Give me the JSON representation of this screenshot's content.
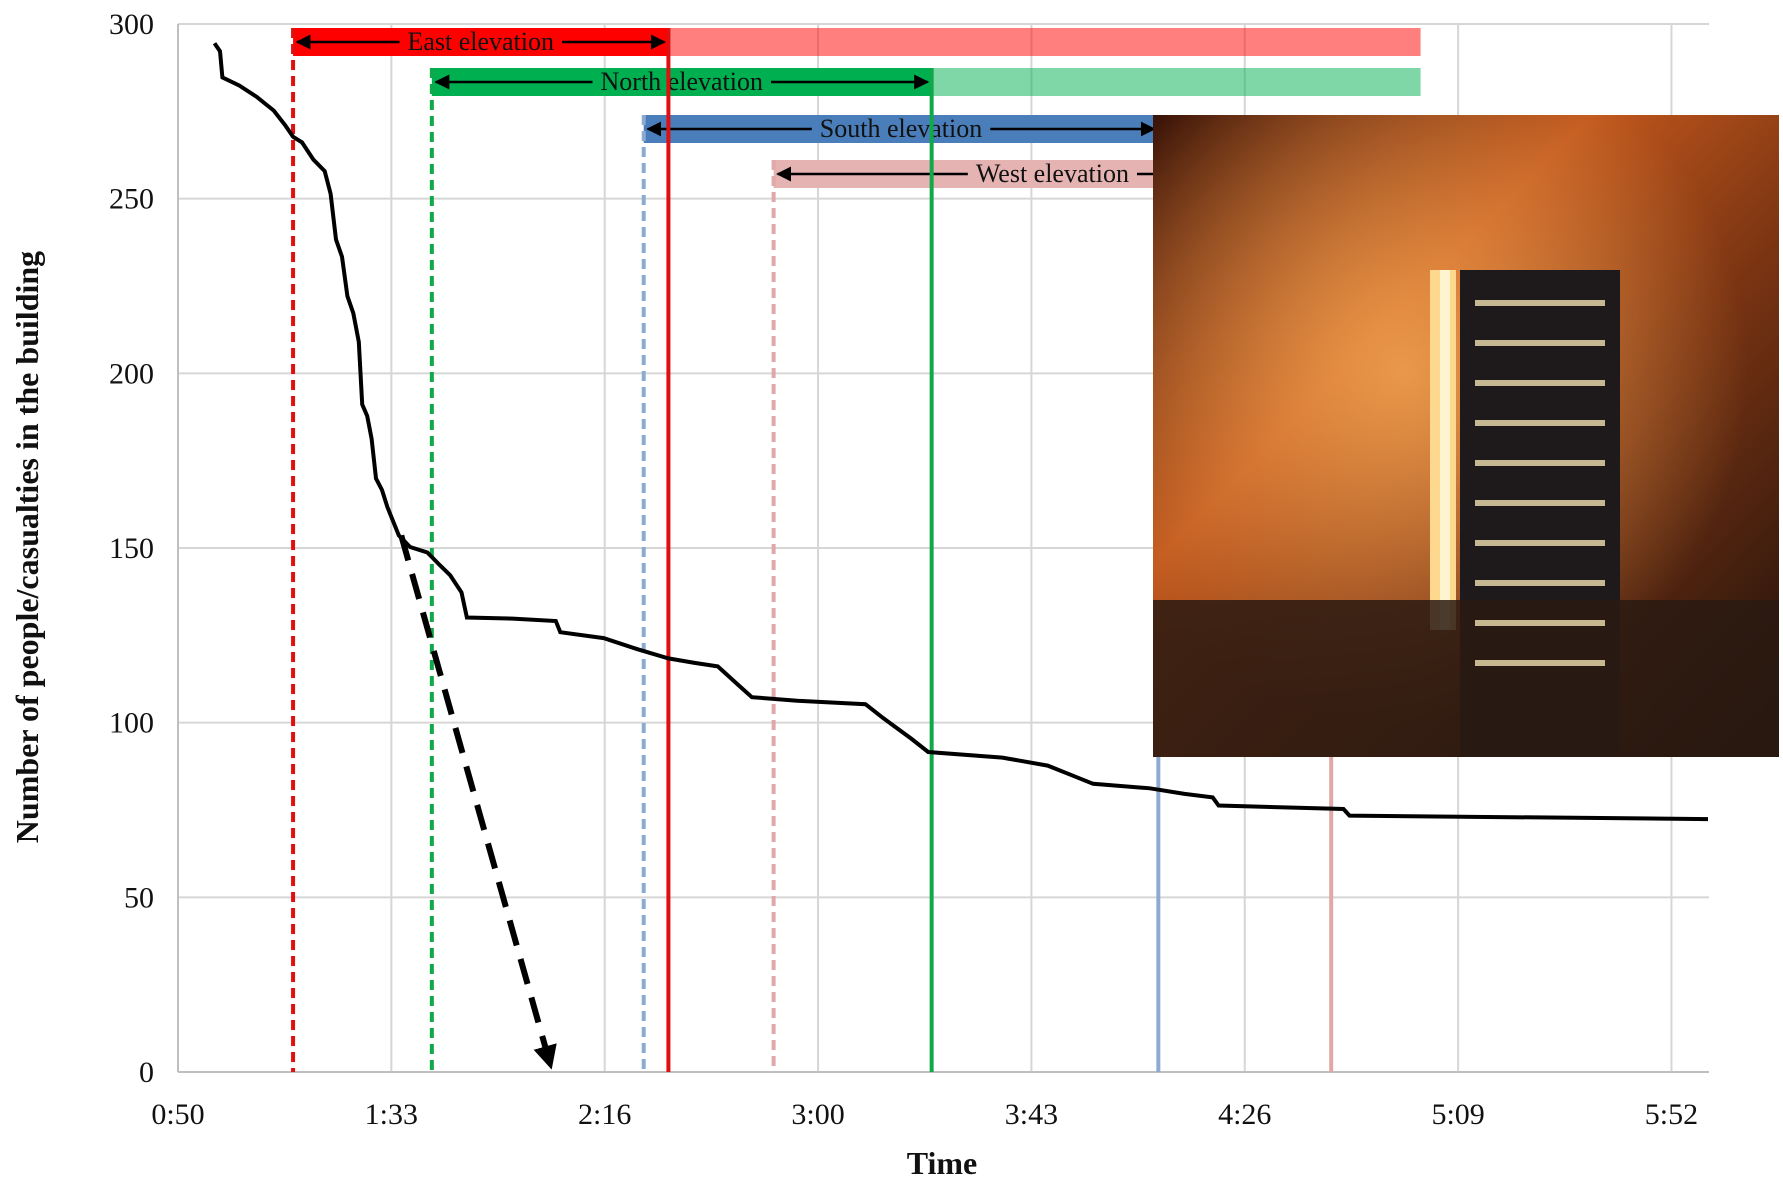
{
  "chart_data": {
    "type": "line",
    "x_title": "Time",
    "y_title": "Number of people/casualties in the building",
    "xlim": [
      50,
      360
    ],
    "xticks": [
      {
        "value": 50,
        "label": "0:50"
      },
      {
        "value": 93.2,
        "label": "1:33"
      },
      {
        "value": 136.4,
        "label": "2:16"
      },
      {
        "value": 179.6,
        "label": "3:00"
      },
      {
        "value": 222.8,
        "label": "3:43"
      },
      {
        "value": 266,
        "label": "4:26"
      },
      {
        "value": 309.2,
        "label": "5:09"
      },
      {
        "value": 352.4,
        "label": "5:52"
      }
    ],
    "ylim": [
      0,
      300
    ],
    "yticks": [
      0,
      50,
      100,
      150,
      200,
      250,
      300
    ],
    "grid": true,
    "series": [
      {
        "color": "#000000",
        "x": [
          57.4,
          58.5,
          59.0,
          62.4,
          65.9,
          69.4,
          71.7,
          73.3,
          75.1,
          77.4,
          79.7,
          80.9,
          82.0,
          83.2,
          84.3,
          85.5,
          86.6,
          87.3,
          88.3,
          89.2,
          90.1,
          91.3,
          92.4,
          94.7,
          97.0,
          100.5,
          102.8,
          105.1,
          107.4,
          108.5,
          117.8,
          126.5,
          127.4,
          136.2,
          143.1,
          149.3,
          154.6,
          159.3,
          163.9,
          166.2,
          175.4,
          189.2,
          192.7,
          198.4,
          201.9,
          216.9,
          226.1,
          230.7,
          235.3,
          246.8,
          253.8,
          259.5,
          260.7,
          286.0,
          287.2,
          359.8
        ],
        "y": [
          294.5,
          292.2,
          284.7,
          282.4,
          279.2,
          275.2,
          271.0,
          267.7,
          266.1,
          261.2,
          257.9,
          251.4,
          238.3,
          233.4,
          222.1,
          217.2,
          209.0,
          191.1,
          187.8,
          181.3,
          169.9,
          166.6,
          161.7,
          153.6,
          150.3,
          148.7,
          145.4,
          142.2,
          137.3,
          130.1,
          129.8,
          129.1,
          125.9,
          124.2,
          121.0,
          118.4,
          117.1,
          116.1,
          110.2,
          107.3,
          106.3,
          105.3,
          101.4,
          95.5,
          91.6,
          90.0,
          87.7,
          85.1,
          82.5,
          81.2,
          79.6,
          78.6,
          76.3,
          75.3,
          73.4,
          72.4
        ]
      }
    ],
    "band_end": 301.6,
    "elevations": [
      {
        "name": "East elevation",
        "color": "#ff0000",
        "line_color": "#e01010",
        "start": 73.3,
        "end": 149.3
      },
      {
        "name": "North elevation",
        "color": "#00b050",
        "line_color": "#10a848",
        "start": 101.4,
        "end": 202.6
      },
      {
        "name": "South elevation",
        "color": "#4a7ebb",
        "line_color": "#8eaad0",
        "start": 144.3,
        "end": 248.5
      },
      {
        "name": "West elevation",
        "color": "#e6b3b3",
        "line_color": "#e0a8a8",
        "start": 170.6,
        "end": 283.5
      }
    ],
    "annotation_arrow": {
      "x": [
        95.2,
        125.4
      ],
      "y": [
        153.6,
        2
      ]
    }
  }
}
